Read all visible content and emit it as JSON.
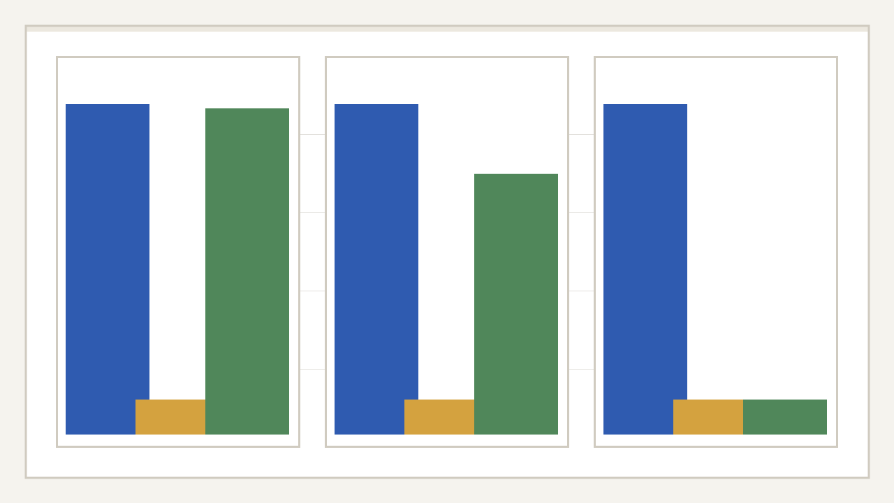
{
  "chart_data": [
    {
      "type": "bar",
      "values": [
        100,
        10.6,
        98.7
      ],
      "colors": [
        "#2f5bb0",
        "#d4a23f",
        "#50875a"
      ],
      "ylim": [
        0,
        100
      ]
    },
    {
      "type": "bar",
      "values": [
        100,
        10.6,
        78.9
      ],
      "colors": [
        "#2f5bb0",
        "#d4a23f",
        "#50875a"
      ],
      "ylim": [
        0,
        100
      ]
    },
    {
      "type": "bar",
      "values": [
        100,
        10.6,
        10.6
      ],
      "colors": [
        "#2f5bb0",
        "#d4a23f",
        "#50875a"
      ],
      "ylim": [
        0,
        100
      ]
    }
  ]
}
